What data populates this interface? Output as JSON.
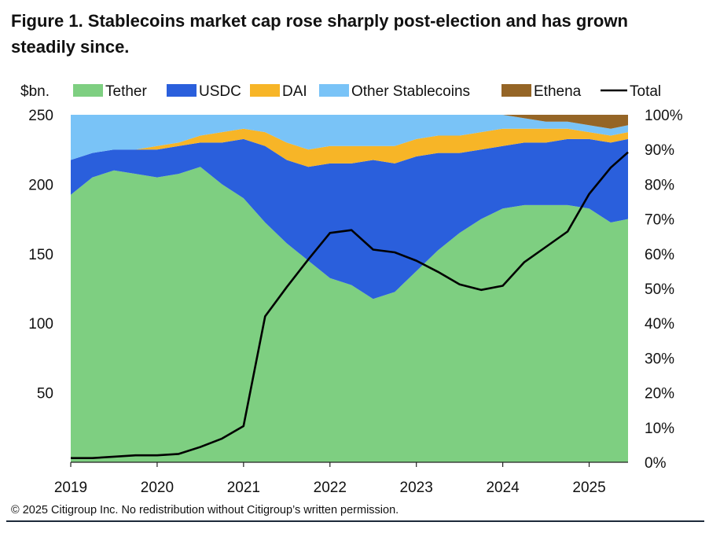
{
  "title": "Figure 1. Stablecoins market cap rose sharply post-election and has grown steadily since.",
  "footer": "© 2025 Citigroup Inc. No redistribution without Citigroup’s written permission.",
  "chart_data": {
    "type": "area",
    "left_axis_label": "$bn.",
    "x_ticks": [
      "2019",
      "2020",
      "2021",
      "2022",
      "2023",
      "2024",
      "2025"
    ],
    "x_range": [
      2019.0,
      2025.45
    ],
    "left_ticks": [
      "50",
      "100",
      "150",
      "200",
      "250"
    ],
    "left_range": [
      0,
      250
    ],
    "right_ticks": [
      "0%",
      "10%",
      "20%",
      "30%",
      "40%",
      "50%",
      "60%",
      "70%",
      "80%",
      "90%",
      "100%"
    ],
    "right_range": [
      0,
      100
    ],
    "stacked_share_of_total": true,
    "colors": {
      "Tether": "#7ecf81",
      "USDC": "#2a5fdc",
      "DAI": "#f7b527",
      "Other Stablecoins": "#79c3f7",
      "Ethena": "#956526",
      "Total": "#000000"
    },
    "legend": [
      {
        "name": "Tether",
        "kind": "area"
      },
      {
        "name": "USDC",
        "kind": "area"
      },
      {
        "name": "DAI",
        "kind": "area"
      },
      {
        "name": "Other Stablecoins",
        "kind": "area"
      },
      {
        "name": "Ethena",
        "kind": "area"
      },
      {
        "name": "Total",
        "kind": "line"
      }
    ],
    "x": [
      2019.0,
      2019.25,
      2019.5,
      2019.75,
      2020.0,
      2020.25,
      2020.5,
      2020.75,
      2021.0,
      2021.25,
      2021.5,
      2021.75,
      2022.0,
      2022.25,
      2022.5,
      2022.75,
      2023.0,
      2023.25,
      2023.5,
      2023.75,
      2024.0,
      2024.25,
      2024.5,
      2024.75,
      2025.0,
      2025.25,
      2025.45
    ],
    "share_series_pct": [
      {
        "name": "Tether",
        "values": [
          77,
          82,
          84,
          83,
          82,
          83,
          85,
          80,
          76,
          69,
          63,
          58,
          53,
          51,
          47,
          49,
          55,
          61,
          66,
          70,
          73,
          74,
          74,
          74,
          73,
          69,
          70
        ]
      },
      {
        "name": "USDC",
        "values": [
          10,
          7,
          6,
          7,
          8,
          8,
          7,
          12,
          17,
          22,
          24,
          27,
          33,
          35,
          40,
          37,
          33,
          28,
          23,
          20,
          18,
          18,
          18,
          19,
          20,
          23,
          23
        ]
      },
      {
        "name": "DAI",
        "values": [
          0,
          0,
          0,
          0,
          1,
          1,
          2,
          3,
          3,
          4,
          5,
          5,
          5,
          5,
          4,
          5,
          5,
          5,
          5,
          5,
          5,
          4,
          4,
          3,
          2,
          2,
          2
        ]
      },
      {
        "name": "Other Stablecoins",
        "values": [
          13,
          11,
          10,
          10,
          9,
          8,
          6,
          5,
          4,
          5,
          8,
          10,
          9,
          9,
          9,
          9,
          7,
          6,
          6,
          5,
          4,
          3,
          2,
          2,
          2,
          2,
          2
        ]
      },
      {
        "name": "Ethena",
        "values": [
          0,
          0,
          0,
          0,
          0,
          0,
          0,
          0,
          0,
          0,
          0,
          0,
          0,
          0,
          0,
          0,
          0,
          0,
          0,
          0,
          0,
          1,
          2,
          2,
          3,
          4,
          3
        ]
      }
    ],
    "total_bn": [
      3,
      3,
      4,
      5,
      5,
      6,
      11,
      17,
      26,
      105,
      126,
      146,
      165,
      167,
      153,
      151,
      145,
      137,
      128,
      124,
      127,
      144,
      155,
      166,
      193,
      212,
      223
    ]
  }
}
